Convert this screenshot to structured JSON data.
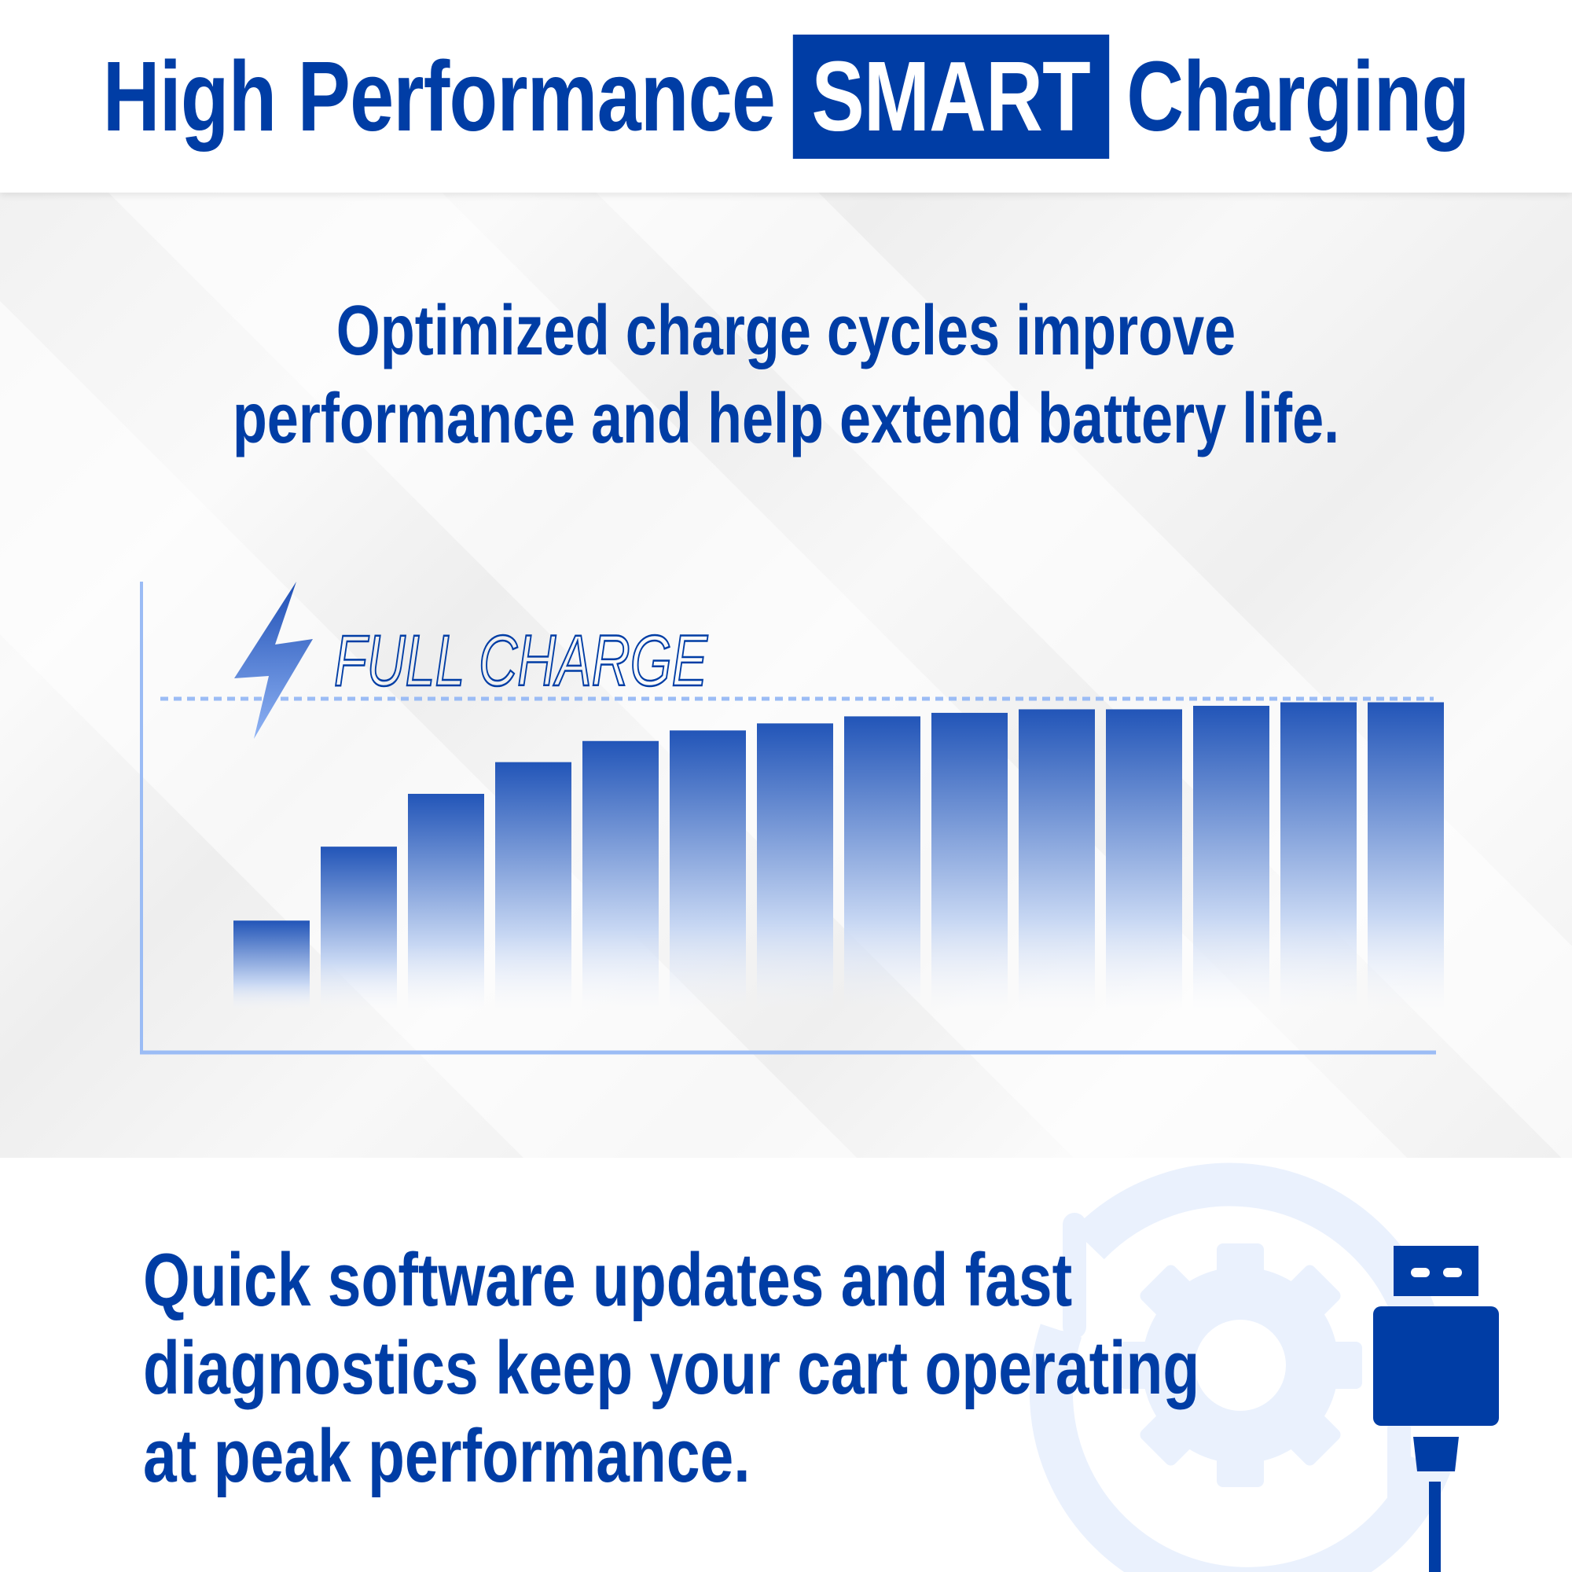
{
  "header": {
    "title_prefix": "High Performance",
    "title_highlight": "SMART",
    "title_suffix": "Charging"
  },
  "subtitle": {
    "line1": "Optimized charge cycles improve",
    "line2": "performance and help extend battery life."
  },
  "chart_data": {
    "type": "bar",
    "label": "FULL CHARGE",
    "values": [
      37,
      58,
      73,
      82,
      88,
      91,
      93,
      95,
      96,
      97,
      97,
      98,
      99,
      99
    ],
    "full_level": 100,
    "ylim": [
      0,
      100
    ],
    "axes": "unlabeled",
    "grid": false,
    "colors": {
      "bar_top": "#2255b8",
      "bar_bottom": "#d8e4f8",
      "axis": "#9bbcf5",
      "label": "#003da5"
    }
  },
  "bottom": {
    "line1": "Quick software updates and fast",
    "line2": "diagnostics keep your cart operating",
    "line3": "at peak performance."
  },
  "icons": {
    "bolt": "lightning-bolt-icon",
    "gear": "gear-sync-icon",
    "usb": "usb-plug-icon"
  },
  "colors": {
    "brand": "#003da5",
    "light": "#eaf1fd"
  }
}
